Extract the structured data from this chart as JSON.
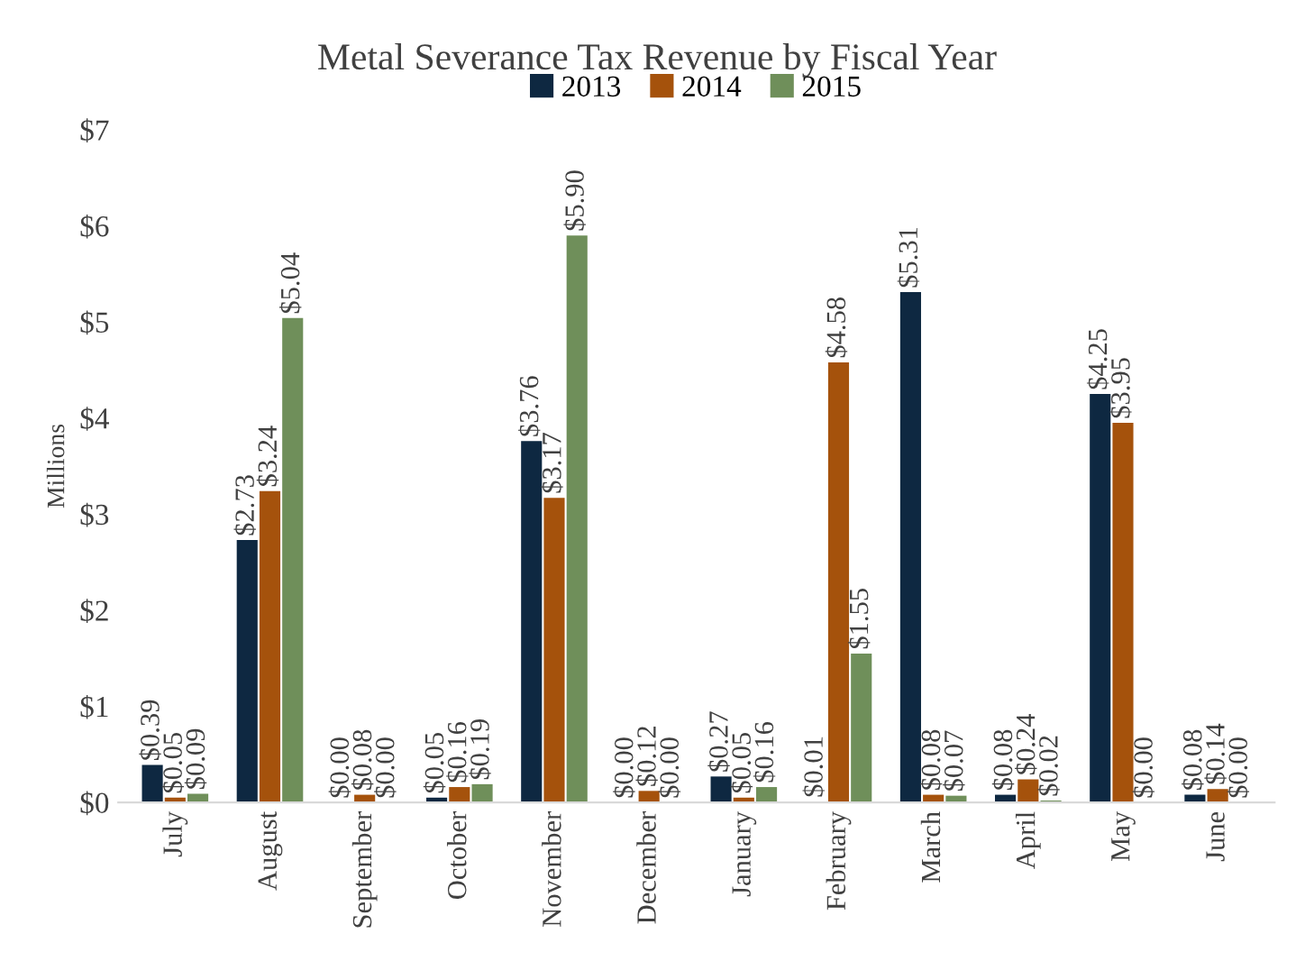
{
  "chart_data": {
    "type": "bar",
    "title": "Metal Severance Tax Revenue by Fiscal Year",
    "ylabel": "Millions",
    "categories": [
      "July",
      "August",
      "September",
      "October",
      "November",
      "December",
      "January",
      "February",
      "March",
      "April",
      "May",
      "June"
    ],
    "series": [
      {
        "name": "2013",
        "color": "#0e2841",
        "values": [
          0.39,
          2.73,
          0.0,
          0.05,
          3.76,
          0.0,
          0.27,
          0.01,
          5.31,
          0.08,
          4.25,
          0.08
        ],
        "value_labels": [
          "$0.39",
          "$2.73",
          "$0.00",
          "$0.05",
          "$3.76",
          "$0.00",
          "$0.27",
          "$0.01",
          "$5.31",
          "$0.08",
          "$4.25",
          "$0.08"
        ]
      },
      {
        "name": "2014",
        "color": "#a5520c",
        "values": [
          0.05,
          3.24,
          0.08,
          0.16,
          3.17,
          0.12,
          0.05,
          4.58,
          0.08,
          0.24,
          3.95,
          0.14
        ],
        "value_labels": [
          "$0.05",
          "$3.24",
          "$0.08",
          "$0.16",
          "$3.17",
          "$0.12",
          "$0.05",
          "$4.58",
          "$0.08",
          "$0.24",
          "$3.95",
          "$0.14"
        ]
      },
      {
        "name": "2015",
        "color": "#6f8f5a",
        "values": [
          0.09,
          5.04,
          0.0,
          0.19,
          5.9,
          0.0,
          0.16,
          1.55,
          0.07,
          0.02,
          0.0,
          0.0
        ],
        "value_labels": [
          "$0.09",
          "$5.04",
          "$0.00",
          "$0.19",
          "$5.90",
          "$0.00",
          "$0.16",
          "$1.55",
          "$0.07",
          "$0.02",
          "$0.00",
          "$0.00"
        ]
      }
    ],
    "ylim": [
      0,
      7
    ],
    "yticks": [
      {
        "value": 0,
        "label": "$0"
      },
      {
        "value": 1,
        "label": "$1"
      },
      {
        "value": 2,
        "label": "$2"
      },
      {
        "value": 3,
        "label": "$3"
      },
      {
        "value": 4,
        "label": "$4"
      },
      {
        "value": 5,
        "label": "$5"
      },
      {
        "value": 6,
        "label": "$6"
      },
      {
        "value": 7,
        "label": "$7"
      }
    ],
    "grid": false,
    "legend": "top"
  }
}
